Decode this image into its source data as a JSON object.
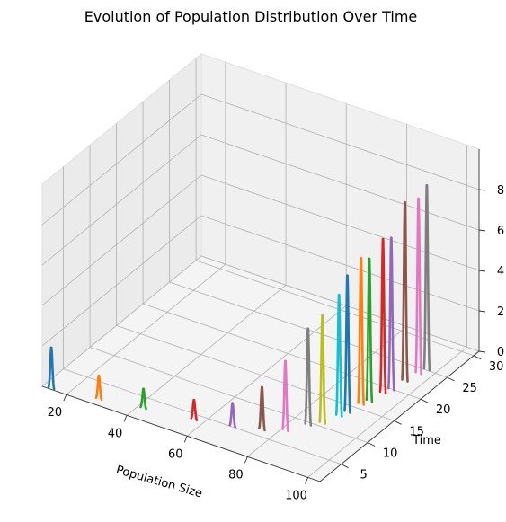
{
  "chart_data": {
    "type": "line",
    "projection": "3d",
    "title": "Evolution of Population Distribution Over Time",
    "xlabel": "Population Size",
    "ylabel": "Time",
    "zlabel": "",
    "xlim": [
      12,
      104
    ],
    "ylim": [
      1,
      31
    ],
    "zlim": [
      0,
      10
    ],
    "xticks": [
      20,
      40,
      60,
      80,
      100
    ],
    "yticks": [
      5,
      10,
      15,
      20,
      25,
      30
    ],
    "zticks": [
      0,
      2,
      4,
      6,
      8
    ],
    "grid": true,
    "series": [
      {
        "color": "#1f77b4",
        "x": 15,
        "y": 1,
        "peak": 2.1
      },
      {
        "color": "#ff7f0e",
        "x": 29,
        "y": 2,
        "peak": 1.2
      },
      {
        "color": "#2ca02c",
        "x": 42,
        "y": 3,
        "peak": 1.0
      },
      {
        "color": "#d62728",
        "x": 57,
        "y": 4,
        "peak": 1.0
      },
      {
        "color": "#9467bd",
        "x": 68,
        "y": 5,
        "peak": 1.2
      },
      {
        "color": "#8c564b",
        "x": 76,
        "y": 6,
        "peak": 2.2
      },
      {
        "color": "#e377c2",
        "x": 82,
        "y": 7,
        "peak": 3.6
      },
      {
        "color": "#7f7f7f",
        "x": 86,
        "y": 9,
        "peak": 5.0
      },
      {
        "color": "#bcbd22",
        "x": 89,
        "y": 10,
        "peak": 5.6
      },
      {
        "color": "#17becf",
        "x": 91,
        "y": 12,
        "peak": 6.3
      },
      {
        "color": "#1f77b4",
        "x": 92,
        "y": 13,
        "peak": 7.1
      },
      {
        "color": "#ff7f0e",
        "x": 93,
        "y": 15,
        "peak": 7.6
      },
      {
        "color": "#2ca02c",
        "x": 94,
        "y": 16,
        "peak": 7.4
      },
      {
        "color": "#d62728",
        "x": 95,
        "y": 18,
        "peak": 8.0
      },
      {
        "color": "#9467bd",
        "x": 96,
        "y": 19,
        "peak": 7.9
      },
      {
        "color": "#8c564b",
        "x": 97,
        "y": 21,
        "peak": 9.3
      },
      {
        "color": "#e377c2",
        "x": 98,
        "y": 23,
        "peak": 9.1
      },
      {
        "color": "#7f7f7f",
        "x": 99,
        "y": 24,
        "peak": 9.6
      }
    ]
  }
}
